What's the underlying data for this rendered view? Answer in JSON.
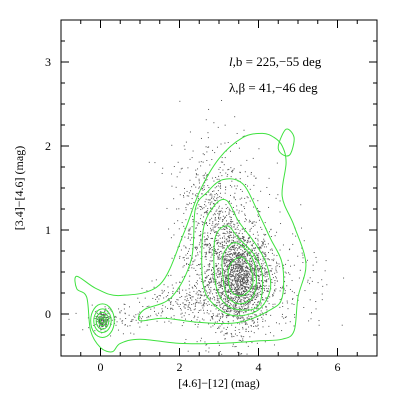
{
  "chart_data": {
    "type": "scatter",
    "xlabel": "[4.6]−[12] (mag)",
    "ylabel": "[3.4]−[4.6] (mag)",
    "xlim": [
      -1,
      7
    ],
    "ylim": [
      -0.5,
      3.5
    ],
    "xticks": [
      0,
      2,
      4,
      6
    ],
    "yticks": [
      0,
      1,
      2,
      3
    ],
    "grid": false,
    "annotations": [
      {
        "text": "l,b = 225,−55 deg"
      },
      {
        "text": "λ,β = 41,−46 deg"
      }
    ],
    "series": [
      {
        "kind": "points",
        "color": "#555555",
        "clusters": [
          {
            "cx": 3.55,
            "cy": 0.4,
            "sx": 0.38,
            "sy": 0.3,
            "n": 1600
          },
          {
            "cx": 2.9,
            "cy": 0.75,
            "sx": 0.45,
            "sy": 0.5,
            "n": 800
          },
          {
            "cx": 3.0,
            "cy": 1.45,
            "sx": 0.6,
            "sy": 0.4,
            "n": 260
          },
          {
            "cx": 4.5,
            "cy": 0.35,
            "sx": 0.7,
            "sy": 0.35,
            "n": 220
          },
          {
            "cx": 2.0,
            "cy": 0.15,
            "sx": 0.55,
            "sy": 0.12,
            "n": 180
          },
          {
            "cx": 0.6,
            "cy": -0.05,
            "sx": 0.5,
            "sy": 0.08,
            "n": 90
          },
          {
            "cx": 0.05,
            "cy": -0.08,
            "sx": 0.08,
            "sy": 0.06,
            "n": 160
          }
        ]
      },
      {
        "kind": "contours",
        "color": "#3fe23f",
        "levels": [
          [
            [
              -0.6,
              0.45
            ],
            [
              -0.1,
              0.3
            ],
            [
              0.5,
              0.22
            ],
            [
              1.5,
              0.35
            ],
            [
              2.1,
              0.95
            ],
            [
              2.5,
              1.45
            ],
            [
              3.0,
              1.85
            ],
            [
              3.6,
              2.1
            ],
            [
              4.1,
              2.15
            ],
            [
              4.4,
              2.1
            ],
            [
              4.6,
              2.0
            ],
            [
              4.7,
              1.8
            ],
            [
              4.6,
              1.4
            ],
            [
              4.9,
              1.05
            ],
            [
              5.2,
              0.6
            ],
            [
              5.0,
              0.2
            ],
            [
              4.9,
              -0.2
            ],
            [
              4.6,
              -0.3
            ],
            [
              4.0,
              -0.32
            ],
            [
              3.0,
              -0.35
            ],
            [
              2.0,
              -0.35
            ],
            [
              1.0,
              -0.3
            ],
            [
              0.5,
              -0.35
            ],
            [
              0.3,
              -0.45
            ],
            [
              0.0,
              -0.4
            ],
            [
              -0.25,
              -0.2
            ],
            [
              -0.35,
              0.2
            ],
            [
              -0.6,
              0.3
            ],
            [
              -0.6,
              0.45
            ]
          ],
          [
            [
              2.4,
              1.25
            ],
            [
              2.7,
              1.45
            ],
            [
              3.1,
              1.6
            ],
            [
              3.6,
              1.55
            ],
            [
              4.0,
              1.2
            ],
            [
              4.3,
              0.9
            ],
            [
              4.6,
              0.6
            ],
            [
              4.6,
              0.2
            ],
            [
              4.3,
              0.05
            ],
            [
              3.5,
              -0.1
            ],
            [
              2.5,
              -0.1
            ],
            [
              1.6,
              -0.05
            ],
            [
              1.0,
              -0.08
            ],
            [
              1.1,
              0.05
            ],
            [
              1.8,
              0.2
            ],
            [
              2.3,
              0.65
            ],
            [
              2.4,
              1.25
            ]
          ],
          [
            [
              2.6,
              1.0
            ],
            [
              2.9,
              1.3
            ],
            [
              3.2,
              1.35
            ],
            [
              3.5,
              1.1
            ],
            [
              3.9,
              0.85
            ],
            [
              4.2,
              0.6
            ],
            [
              4.3,
              0.3
            ],
            [
              4.0,
              0.05
            ],
            [
              3.4,
              -0.02
            ],
            [
              2.9,
              0.1
            ],
            [
              2.6,
              0.35
            ],
            [
              2.6,
              1.0
            ]
          ],
          [
            [
              2.9,
              0.9
            ],
            [
              3.2,
              1.05
            ],
            [
              3.5,
              0.9
            ],
            [
              3.9,
              0.7
            ],
            [
              4.1,
              0.45
            ],
            [
              4.0,
              0.1
            ],
            [
              3.5,
              0.05
            ],
            [
              3.1,
              0.15
            ],
            [
              2.9,
              0.4
            ],
            [
              2.9,
              0.9
            ]
          ],
          [
            [
              3.1,
              0.7
            ],
            [
              3.4,
              0.85
            ],
            [
              3.8,
              0.7
            ],
            [
              3.95,
              0.45
            ],
            [
              3.85,
              0.2
            ],
            [
              3.5,
              0.12
            ],
            [
              3.2,
              0.22
            ],
            [
              3.1,
              0.45
            ],
            [
              3.1,
              0.7
            ]
          ],
          [
            [
              3.25,
              0.55
            ],
            [
              3.55,
              0.68
            ],
            [
              3.8,
              0.55
            ],
            [
              3.85,
              0.35
            ],
            [
              3.6,
              0.22
            ],
            [
              3.3,
              0.28
            ],
            [
              3.25,
              0.55
            ]
          ],
          [
            [
              4.5,
              2.0
            ],
            [
              4.7,
              2.2
            ],
            [
              4.9,
              2.1
            ],
            [
              4.8,
              1.9
            ],
            [
              4.6,
              1.9
            ],
            [
              4.5,
              2.0
            ]
          ]
        ],
        "core_ellipses": [
          {
            "cx": 0.05,
            "cy": -0.08,
            "rx": [
              0.3,
              0.22,
              0.16,
              0.1,
              0.05
            ],
            "ry": [
              0.2,
              0.14,
              0.1,
              0.06,
              0.03
            ]
          }
        ]
      }
    ]
  },
  "text": {
    "annot1_prefix": "l",
    "annot1_rest": ",b  = 225,−55 deg",
    "annot2_prefix": "λ,β",
    "annot2_rest": " = 41,−46 deg"
  }
}
